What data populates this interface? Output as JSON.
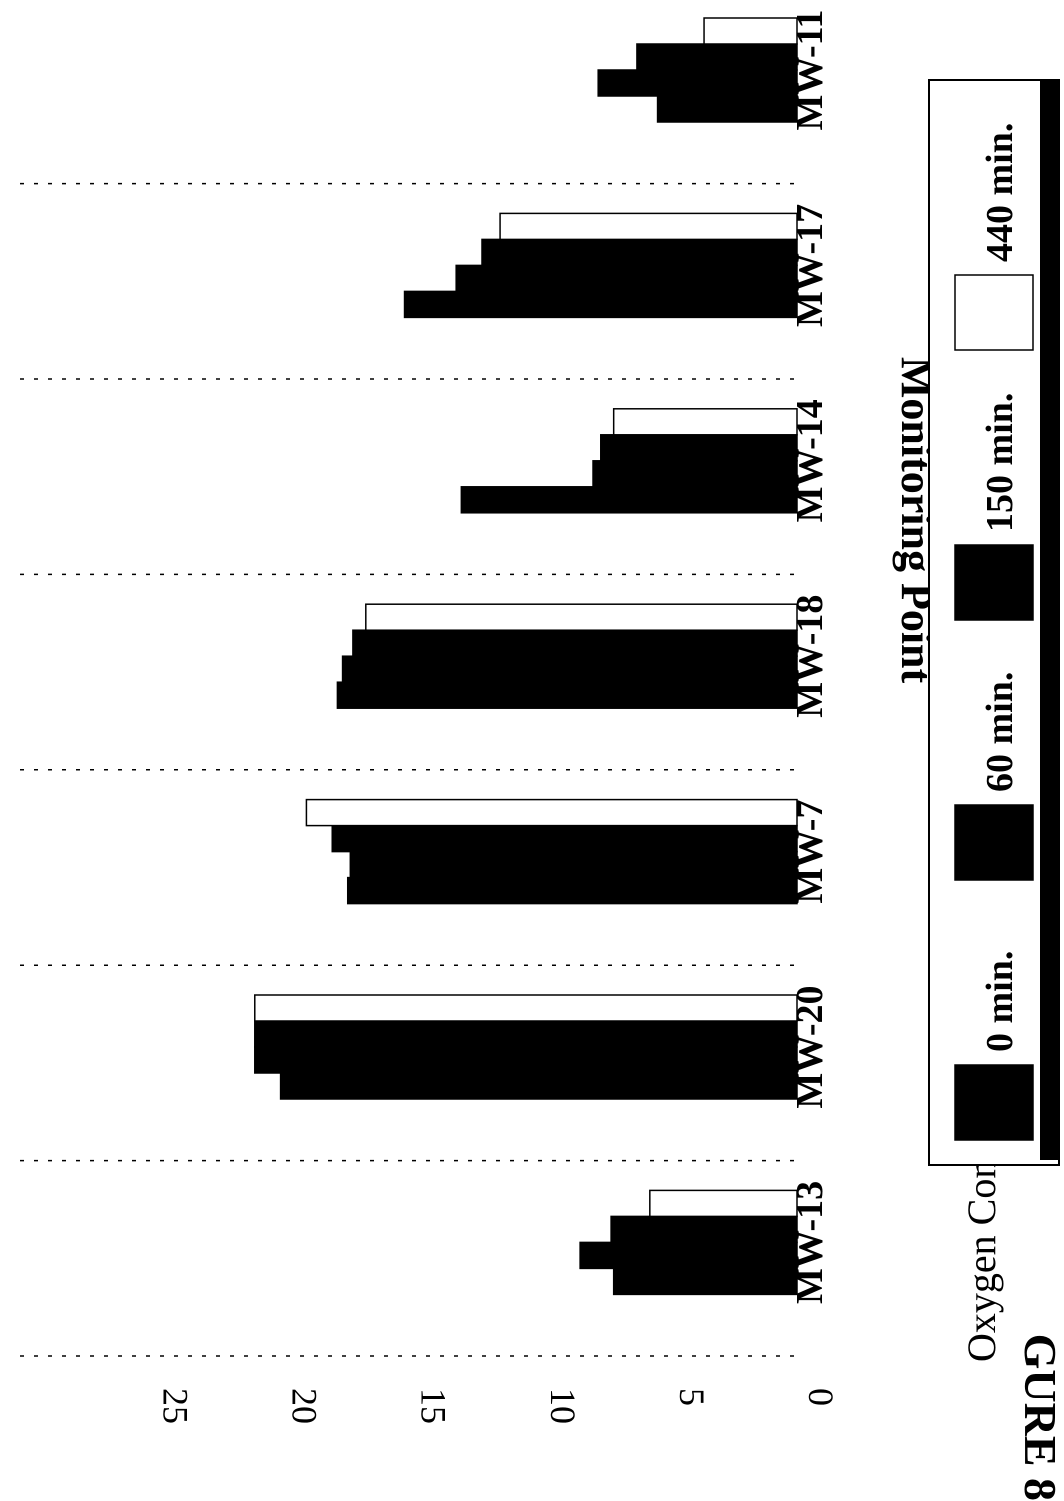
{
  "figure_label": "GURE 8",
  "chart_data": {
    "type": "bar",
    "orientation": "rotated-90-clockwise",
    "title": "",
    "xlabel": "Monitoring Point",
    "ylabel": "Oxygen Concentration (Vol. %)",
    "ylim": [
      0,
      25
    ],
    "yticks": [
      "0",
      "5",
      "10",
      "15",
      "20",
      "25"
    ],
    "grid": "dashed major gridlines",
    "legend_position": "bottom",
    "categories": [
      "MW-13",
      "MW-20",
      "MW-7",
      "MW-18",
      "MW-14",
      "MW-17",
      "MW-11"
    ],
    "series": [
      {
        "name": "0 min.",
        "color": "#000000",
        "values": [
          7.1,
          20.0,
          17.4,
          17.8,
          13.0,
          15.2,
          5.4
        ]
      },
      {
        "name": "60 min.",
        "color": "#000000",
        "values": [
          8.4,
          21.0,
          17.3,
          17.6,
          7.9,
          13.2,
          7.7
        ]
      },
      {
        "name": "150 min.",
        "color": "#000000",
        "values": [
          7.2,
          21.0,
          18.0,
          17.2,
          7.6,
          12.2,
          6.2
        ]
      },
      {
        "name": "440 min.",
        "color": "#ffffff",
        "values": [
          5.7,
          21.0,
          19.0,
          16.7,
          7.1,
          11.5,
          3.6
        ]
      }
    ]
  }
}
